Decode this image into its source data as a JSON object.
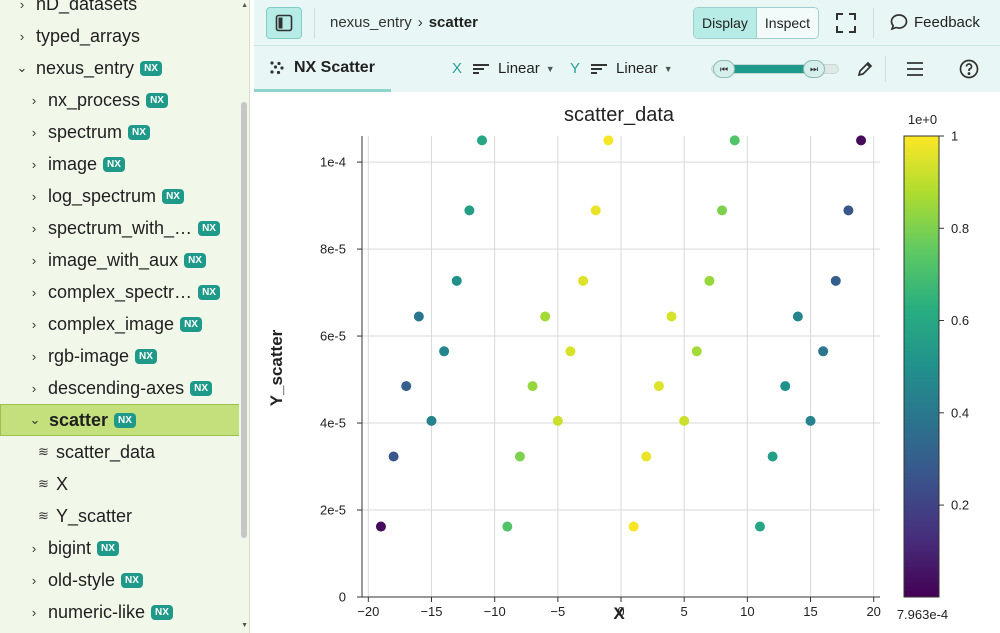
{
  "sidebar": {
    "items": [
      {
        "label": "nD_datasets",
        "indent": 0,
        "chev": "›",
        "nx": false
      },
      {
        "label": "typed_arrays",
        "indent": 0,
        "chev": "›",
        "nx": false
      },
      {
        "label": "nexus_entry",
        "indent": 0,
        "chev": "⌄",
        "nx": true
      },
      {
        "label": "nx_process",
        "indent": 1,
        "chev": "›",
        "nx": true
      },
      {
        "label": "spectrum",
        "indent": 1,
        "chev": "›",
        "nx": true
      },
      {
        "label": "image",
        "indent": 1,
        "chev": "›",
        "nx": true
      },
      {
        "label": "log_spectrum",
        "indent": 1,
        "chev": "›",
        "nx": true
      },
      {
        "label": "spectrum_with_…",
        "indent": 1,
        "chev": "›",
        "nx": true
      },
      {
        "label": "image_with_aux",
        "indent": 1,
        "chev": "›",
        "nx": true
      },
      {
        "label": "complex_spectr…",
        "indent": 1,
        "chev": "›",
        "nx": true
      },
      {
        "label": "complex_image",
        "indent": 1,
        "chev": "›",
        "nx": true
      },
      {
        "label": "rgb-image",
        "indent": 1,
        "chev": "›",
        "nx": true
      },
      {
        "label": "descending-axes",
        "indent": 1,
        "chev": "›",
        "nx": true
      },
      {
        "label": "scatter",
        "indent": 1,
        "chev": "⌄",
        "nx": true,
        "selected": true
      },
      {
        "label": "scatter_data",
        "indent": 2,
        "dataset": true
      },
      {
        "label": "X",
        "indent": 2,
        "dataset": true
      },
      {
        "label": "Y_scatter",
        "indent": 2,
        "dataset": true
      },
      {
        "label": "bigint",
        "indent": 1,
        "chev": "›",
        "nx": true
      },
      {
        "label": "old-style",
        "indent": 1,
        "chev": "›",
        "nx": true
      },
      {
        "label": "numeric-like",
        "indent": 1,
        "chev": "›",
        "nx": true
      }
    ],
    "nx_badge": "NX"
  },
  "topbar": {
    "breadcrumb_parent": "nexus_entry",
    "breadcrumb_sep": "›",
    "breadcrumb_current": "scatter",
    "display_label": "Display",
    "inspect_label": "Inspect",
    "feedback_label": "Feedback"
  },
  "toolbar": {
    "vis_tab_label": "NX Scatter",
    "x_axis_label": "X",
    "x_scale": "Linear",
    "y_axis_label": "Y",
    "y_scale": "Linear"
  },
  "chart_data": {
    "type": "scatter",
    "title": "scatter_data",
    "xlabel": "X",
    "ylabel": "Y_scatter",
    "xlim": [
      -20.5,
      20.5
    ],
    "ylim": [
      0,
      0.000106
    ],
    "xticks": [
      -20,
      -15,
      -10,
      -5,
      0,
      5,
      10,
      15,
      20
    ],
    "xtick_labels": [
      "−20",
      "−15",
      "−10",
      "−5",
      "0",
      "5",
      "10",
      "15",
      "20"
    ],
    "yticks": [
      0,
      2e-05,
      4e-05,
      6e-05,
      8e-05,
      0.0001
    ],
    "ytick_labels": [
      "0",
      "2e-5",
      "4e-5",
      "6e-5",
      "8e-5",
      "1e-4"
    ],
    "grid": true,
    "colormap": "viridis",
    "colorbar": {
      "min_label": "7.963e-4",
      "max_label": "1e+0",
      "ticks": [
        0.2,
        0.4,
        0.6,
        0.8,
        1
      ],
      "tick_labels": [
        "0.2",
        "0.4",
        "0.6",
        "0.8",
        "1"
      ]
    },
    "points": [
      {
        "x": -19,
        "y": 1.62e-05,
        "v": 0.03
      },
      {
        "x": -18,
        "y": 3.23e-05,
        "v": 0.27
      },
      {
        "x": -17,
        "y": 4.85e-05,
        "v": 0.3
      },
      {
        "x": -16,
        "y": 6.45e-05,
        "v": 0.39
      },
      {
        "x": -15,
        "y": 4.05e-05,
        "v": 0.44
      },
      {
        "x": -14,
        "y": 5.65e-05,
        "v": 0.45
      },
      {
        "x": -13,
        "y": 7.27e-05,
        "v": 0.5
      },
      {
        "x": -12,
        "y": 8.89e-05,
        "v": 0.56
      },
      {
        "x": -11,
        "y": 0.000105,
        "v": 0.59
      },
      {
        "x": -9,
        "y": 1.62e-05,
        "v": 0.72
      },
      {
        "x": -8,
        "y": 3.23e-05,
        "v": 0.8
      },
      {
        "x": -7,
        "y": 4.85e-05,
        "v": 0.84
      },
      {
        "x": -6,
        "y": 6.45e-05,
        "v": 0.86
      },
      {
        "x": -5,
        "y": 4.05e-05,
        "v": 0.92
      },
      {
        "x": -4,
        "y": 5.65e-05,
        "v": 0.94
      },
      {
        "x": -3,
        "y": 7.27e-05,
        "v": 0.95
      },
      {
        "x": -2,
        "y": 8.89e-05,
        "v": 0.97
      },
      {
        "x": -1,
        "y": 0.000105,
        "v": 0.99
      },
      {
        "x": 1,
        "y": 1.62e-05,
        "v": 0.99
      },
      {
        "x": 2,
        "y": 3.23e-05,
        "v": 0.97
      },
      {
        "x": 3,
        "y": 4.85e-05,
        "v": 0.95
      },
      {
        "x": 4,
        "y": 6.45e-05,
        "v": 0.94
      },
      {
        "x": 5,
        "y": 4.05e-05,
        "v": 0.92
      },
      {
        "x": 6,
        "y": 5.65e-05,
        "v": 0.86
      },
      {
        "x": 7,
        "y": 7.27e-05,
        "v": 0.84
      },
      {
        "x": 8,
        "y": 8.89e-05,
        "v": 0.8
      },
      {
        "x": 9,
        "y": 0.000105,
        "v": 0.72
      },
      {
        "x": 11,
        "y": 1.62e-05,
        "v": 0.59
      },
      {
        "x": 12,
        "y": 3.23e-05,
        "v": 0.56
      },
      {
        "x": 13,
        "y": 4.85e-05,
        "v": 0.5
      },
      {
        "x": 14,
        "y": 6.45e-05,
        "v": 0.45
      },
      {
        "x": 15,
        "y": 4.05e-05,
        "v": 0.44
      },
      {
        "x": 16,
        "y": 5.65e-05,
        "v": 0.39
      },
      {
        "x": 17,
        "y": 7.27e-05,
        "v": 0.3
      },
      {
        "x": 18,
        "y": 8.89e-05,
        "v": 0.27
      },
      {
        "x": 19,
        "y": 0.000105,
        "v": 0.03
      }
    ]
  },
  "colors": {
    "accent": "#1f9a8a",
    "selected_row": "#c4e07c",
    "sidebar_bg": "#f1f8ea",
    "header_bg": "#e8f7f6"
  },
  "icons": {
    "sidebar_toggle": "sidebar-toggle-icon",
    "fullscreen": "fullscreen-icon",
    "feedback": "chat-bubble-icon",
    "scatter_tab": "scatter-icon",
    "pencil": "pencil-icon",
    "menu": "hamburger-icon",
    "help": "help-icon"
  }
}
